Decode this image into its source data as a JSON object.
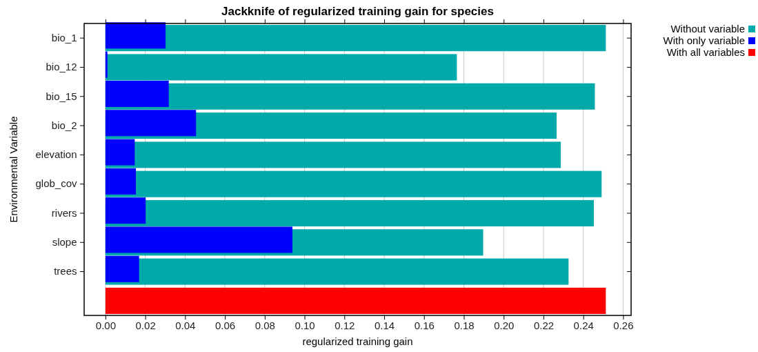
{
  "chart_data": {
    "type": "bar",
    "orientation": "horizontal",
    "title": "Jackknife of regularized training gain for species",
    "xlabel": "regularized training gain",
    "ylabel": "Environmental Variable",
    "categories": [
      "bio_1",
      "bio_12",
      "bio_15",
      "bio_2",
      "elevation",
      "glob_cov",
      "rivers",
      "slope",
      "trees",
      null
    ],
    "series": [
      {
        "name": "Without variable",
        "color": "#00aaaa",
        "values": [
          0.2513,
          0.1765,
          0.2458,
          0.2266,
          0.2287,
          0.2492,
          0.2453,
          0.1897,
          0.2326,
          null
        ]
      },
      {
        "name": "With only variable",
        "color": "#0000ff",
        "values": [
          0.0302,
          0.001,
          0.0318,
          0.0455,
          0.0147,
          0.0153,
          0.0202,
          0.0939,
          0.0169,
          null
        ]
      },
      {
        "name": "With all variables",
        "color": "#ff0000",
        "values": [
          null,
          null,
          null,
          null,
          null,
          null,
          null,
          null,
          null,
          0.2513
        ]
      }
    ],
    "xlim": [
      -0.0107,
      0.264
    ],
    "xticks": [
      {
        "value": 0,
        "label": "0.00"
      },
      {
        "value": 0.02,
        "label": "0.02"
      },
      {
        "value": 0.04,
        "label": "0.04"
      },
      {
        "value": 0.06,
        "label": "0.06"
      },
      {
        "value": 0.08,
        "label": "0.08"
      },
      {
        "value": 0.1,
        "label": "0.10"
      },
      {
        "value": 0.12,
        "label": "0.12"
      },
      {
        "value": 0.14,
        "label": "0.14"
      },
      {
        "value": 0.16,
        "label": "0.16"
      },
      {
        "value": 0.18,
        "label": "0.18"
      },
      {
        "value": 0.2,
        "label": "0.20"
      },
      {
        "value": 0.22,
        "label": "0.22"
      },
      {
        "value": 0.24,
        "label": "0.24"
      },
      {
        "value": 0.26,
        "label": "0.26"
      }
    ],
    "grid": "x",
    "legend": "top right"
  }
}
